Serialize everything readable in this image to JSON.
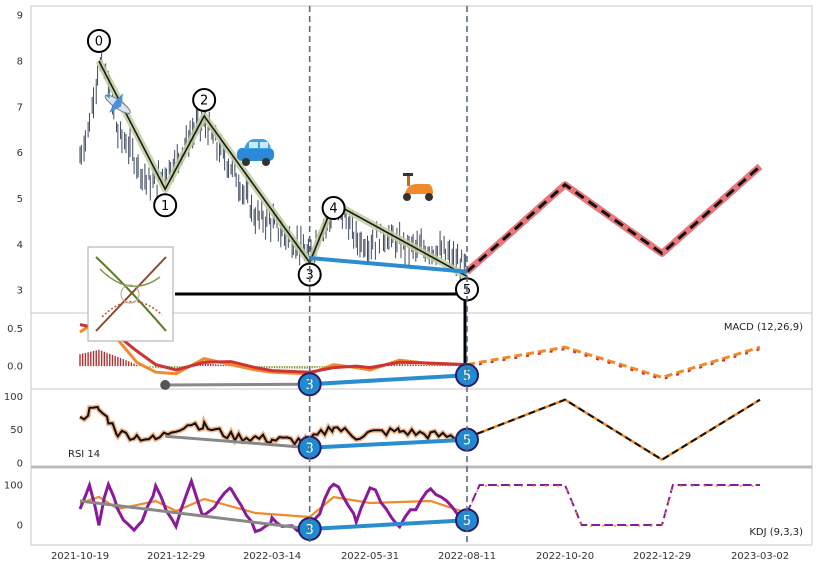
{
  "chart_data": {
    "type": "line",
    "subtype": "candlestick-with-elliott-wave-and-indicators",
    "x_ticks": [
      "2021-10-19",
      "2021-12-29",
      "2022-03-14",
      "2022-05-31",
      "2022-08-11",
      "2022-10-20",
      "2022-12-29",
      "2023-03-02"
    ],
    "price_panel": {
      "y_ticks": [
        3,
        4,
        5,
        6,
        7,
        8,
        9
      ],
      "ylim": [
        2.5,
        9.2
      ],
      "grid": true,
      "candle_trend": [
        [
          "2021-10-19",
          5.9
        ],
        [
          "2021-10-26",
          6.6
        ],
        [
          "2021-11-02",
          7.9
        ],
        [
          "2021-11-09",
          7.6
        ],
        [
          "2021-11-16",
          6.4
        ],
        [
          "2021-11-23",
          6.2
        ],
        [
          "2021-11-30",
          5.8
        ],
        [
          "2021-12-07",
          5.4
        ],
        [
          "2021-12-14",
          5.3
        ],
        [
          "2021-12-21",
          5.6
        ],
        [
          "2021-12-29",
          5.8
        ],
        [
          "2022-01-10",
          6.4
        ],
        [
          "2022-01-20",
          6.7
        ],
        [
          "2022-01-31",
          6.1
        ],
        [
          "2022-02-10",
          5.7
        ],
        [
          "2022-02-21",
          5.1
        ],
        [
          "2022-03-01",
          4.6
        ],
        [
          "2022-03-14",
          4.5
        ],
        [
          "2022-03-24",
          4.2
        ],
        [
          "2022-04-04",
          4.0
        ],
        [
          "2022-04-13",
          3.7
        ],
        [
          "2022-04-22",
          4.3
        ],
        [
          "2022-05-02",
          4.7
        ],
        [
          "2022-05-12",
          4.6
        ],
        [
          "2022-05-20",
          4.1
        ],
        [
          "2022-05-31",
          4.0
        ],
        [
          "2022-06-10",
          4.2
        ],
        [
          "2022-06-22",
          4.0
        ],
        [
          "2022-07-04",
          3.9
        ],
        [
          "2022-07-15",
          3.9
        ],
        [
          "2022-07-26",
          3.8
        ],
        [
          "2022-08-04",
          3.6
        ],
        [
          "2022-08-11",
          3.5
        ]
      ],
      "wave_points": [
        {
          "label": "0",
          "x": "2021-11-02",
          "y": 8.0
        },
        {
          "label": "1",
          "x": "2021-12-21",
          "y": 5.2
        },
        {
          "label": "2",
          "x": "2022-01-20",
          "y": 6.8
        },
        {
          "label": "3",
          "x": "2022-04-13",
          "y": 3.6
        },
        {
          "label": "4",
          "x": "2022-05-02",
          "y": 4.9
        },
        {
          "label": "5",
          "x": "2022-08-11",
          "y": 3.3
        }
      ],
      "projection": [
        [
          "2022-08-11",
          3.4
        ],
        [
          "2022-10-20",
          5.3
        ],
        [
          "2022-12-29",
          3.8
        ],
        [
          "2023-03-02",
          5.7
        ]
      ],
      "divergence_line": [
        [
          "2022-04-13",
          3.7
        ],
        [
          "2022-08-11",
          3.4
        ]
      ],
      "divergence_labels": [
        "3",
        "5"
      ]
    },
    "macd_panel": {
      "label": "MACD (12,26,9)",
      "y_ticks": [
        0.0,
        0.5
      ],
      "ylim": [
        -0.25,
        0.65
      ],
      "macd": [
        [
          "2021-10-19",
          0.45
        ],
        [
          "2021-11-02",
          0.62
        ],
        [
          "2021-11-16",
          0.35
        ],
        [
          "2021-11-30",
          0.05
        ],
        [
          "2021-12-14",
          -0.08
        ],
        [
          "2021-12-29",
          -0.1
        ],
        [
          "2022-01-20",
          0.1
        ],
        [
          "2022-02-10",
          0.02
        ],
        [
          "2022-03-01",
          -0.05
        ],
        [
          "2022-03-14",
          -0.08
        ],
        [
          "2022-04-13",
          -0.1
        ],
        [
          "2022-05-02",
          0.02
        ],
        [
          "2022-05-20",
          -0.02
        ],
        [
          "2022-05-31",
          -0.05
        ],
        [
          "2022-06-22",
          0.08
        ],
        [
          "2022-07-15",
          0.03
        ],
        [
          "2022-08-11",
          0.02
        ]
      ],
      "signal": [
        [
          "2021-10-19",
          0.55
        ],
        [
          "2021-11-02",
          0.5
        ],
        [
          "2021-11-16",
          0.4
        ],
        [
          "2021-11-30",
          0.2
        ],
        [
          "2021-12-14",
          0.02
        ],
        [
          "2021-12-29",
          -0.05
        ],
        [
          "2022-01-20",
          0.05
        ],
        [
          "2022-02-10",
          0.06
        ],
        [
          "2022-03-01",
          -0.02
        ],
        [
          "2022-03-14",
          -0.06
        ],
        [
          "2022-04-13",
          -0.08
        ],
        [
          "2022-05-02",
          -0.02
        ],
        [
          "2022-05-20",
          0.0
        ],
        [
          "2022-05-31",
          -0.02
        ],
        [
          "2022-06-22",
          0.05
        ],
        [
          "2022-07-15",
          0.04
        ],
        [
          "2022-08-11",
          0.02
        ]
      ],
      "projection": [
        [
          "2022-08-11",
          0.02
        ],
        [
          "2022-10-20",
          0.25
        ],
        [
          "2022-12-29",
          -0.15
        ],
        [
          "2023-03-02",
          0.25
        ]
      ],
      "divergence_line": [
        [
          "2021-12-21",
          -0.25
        ],
        [
          "2022-04-13",
          -0.24
        ],
        [
          "2022-08-11",
          -0.12
        ]
      ],
      "divergence_labels": [
        "3",
        "5"
      ]
    },
    "rsi_panel": {
      "label": "RSI 14",
      "y_ticks": [
        0,
        50,
        100
      ],
      "ylim": [
        0,
        105
      ],
      "rsi": [
        [
          "2021-10-19",
          65
        ],
        [
          "2021-10-26",
          78
        ],
        [
          "2021-11-02",
          80
        ],
        [
          "2021-11-09",
          65
        ],
        [
          "2021-11-16",
          45
        ],
        [
          "2021-11-30",
          40
        ],
        [
          "2021-12-14",
          35
        ],
        [
          "2021-12-29",
          52
        ],
        [
          "2022-01-10",
          60
        ],
        [
          "2022-01-20",
          55
        ],
        [
          "2022-02-10",
          40
        ],
        [
          "2022-03-01",
          38
        ],
        [
          "2022-03-14",
          35
        ],
        [
          "2022-04-13",
          33
        ],
        [
          "2022-05-02",
          55
        ],
        [
          "2022-05-20",
          40
        ],
        [
          "2022-05-31",
          45
        ],
        [
          "2022-06-22",
          48
        ],
        [
          "2022-07-15",
          42
        ],
        [
          "2022-08-11",
          38
        ]
      ],
      "projection": [
        [
          "2022-08-11",
          38
        ],
        [
          "2022-10-20",
          95
        ],
        [
          "2022-12-29",
          5
        ],
        [
          "2023-03-02",
          95
        ]
      ],
      "divergence_line": [
        [
          "2021-12-21",
          40
        ],
        [
          "2022-04-13",
          23
        ],
        [
          "2022-08-11",
          35
        ]
      ],
      "divergence_labels": [
        "3",
        "5"
      ]
    },
    "kdj_panel": {
      "label": "KDJ (9,3,3)",
      "y_ticks": [
        0,
        100
      ],
      "ylim": [
        -40,
        135
      ],
      "j": [
        [
          "2021-10-19",
          40
        ],
        [
          "2021-10-26",
          100
        ],
        [
          "2021-11-02",
          -5
        ],
        [
          "2021-11-09",
          110
        ],
        [
          "2021-11-16",
          30
        ],
        [
          "2021-11-30",
          -10
        ],
        [
          "2021-12-14",
          90
        ],
        [
          "2021-12-29",
          0
        ],
        [
          "2022-01-10",
          110
        ],
        [
          "2022-01-20",
          20
        ],
        [
          "2022-02-10",
          95
        ],
        [
          "2022-03-01",
          -10
        ],
        [
          "2022-03-14",
          10
        ],
        [
          "2022-04-13",
          -20
        ],
        [
          "2022-05-02",
          110
        ],
        [
          "2022-05-20",
          10
        ],
        [
          "2022-05-31",
          100
        ],
        [
          "2022-06-22",
          -5
        ],
        [
          "2022-07-15",
          95
        ],
        [
          "2022-08-11",
          10
        ]
      ],
      "kd": [
        [
          "2021-10-19",
          55
        ],
        [
          "2021-11-02",
          70
        ],
        [
          "2021-11-16",
          40
        ],
        [
          "2021-12-14",
          60
        ],
        [
          "2021-12-29",
          35
        ],
        [
          "2022-01-20",
          65
        ],
        [
          "2022-03-01",
          30
        ],
        [
          "2022-04-13",
          20
        ],
        [
          "2022-05-02",
          70
        ],
        [
          "2022-05-31",
          55
        ],
        [
          "2022-07-15",
          60
        ],
        [
          "2022-08-11",
          30
        ]
      ],
      "projection": [
        [
          "2022-08-11",
          30
        ],
        [
          "2022-08-20",
          100
        ],
        [
          "2022-10-20",
          100
        ],
        [
          "2022-11-01",
          0
        ],
        [
          "2022-12-29",
          0
        ],
        [
          "2023-01-05",
          100
        ],
        [
          "2023-03-02",
          100
        ]
      ],
      "divergence_line": [
        [
          "2021-10-19",
          60
        ],
        [
          "2022-04-13",
          -10
        ],
        [
          "2022-08-11",
          12
        ]
      ],
      "divergence_labels": [
        "3",
        "5"
      ]
    },
    "colors": {
      "candle": "#3f4a60",
      "wave": "#1a1a1a",
      "wave_halo": "#bfcf9f",
      "divergence": "#2a8dd0",
      "projection_halo": "#e8767a",
      "projection_line": "#111111",
      "macd_orange": "#f08a2a",
      "macd_red": "#cc3333",
      "rsi_line": "#111111",
      "rsi_halo": "#f4b48a",
      "kdj_purple": "#8a1a9a",
      "kdj_orange": "#f08a2a",
      "guide": "#5a6a80",
      "grid": "#dddddd",
      "badge": "#1f8ad0"
    },
    "icons": [
      "airplane-icon",
      "car-icon",
      "scooter-icon",
      "genealogy-thumbnail"
    ]
  }
}
